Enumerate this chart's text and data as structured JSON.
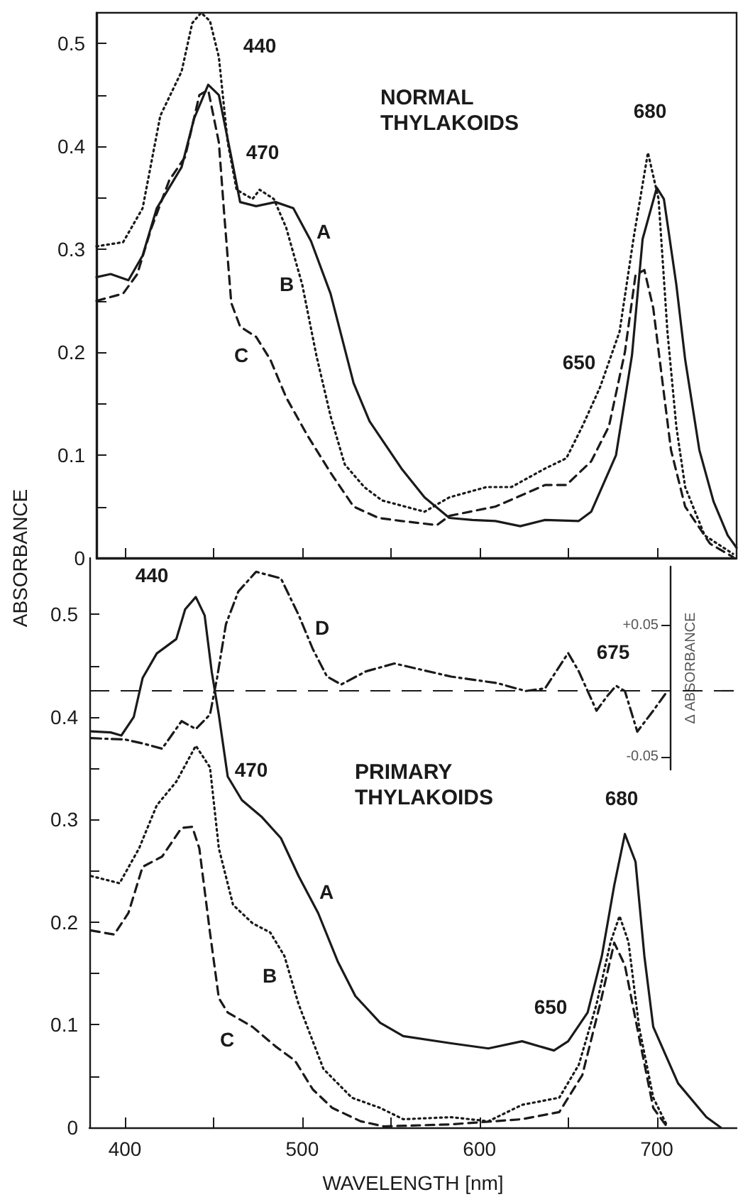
{
  "chart_data": [
    {
      "type": "line",
      "title": "NORMAL\nTHYLAKOIDS",
      "xlim": [
        384,
        745
      ],
      "xticks": [
        400,
        450,
        500,
        550,
        600,
        650,
        700
      ],
      "ylim": [
        0,
        0.53
      ],
      "yticks": [
        0,
        {
          "value": 0.05,
          "label": null
        },
        0.1,
        {
          "value": 0.15,
          "label": null
        },
        0.2,
        {
          "value": 0.25,
          "label": null
        },
        0.3,
        {
          "value": 0.35,
          "label": null
        },
        0.4,
        {
          "value": 0.45,
          "label": null
        },
        0.5
      ],
      "tick_labels": "y",
      "grid": false,
      "marker": "none",
      "series": [
        {
          "color": "#1a1a1a",
          "line_style": "solid",
          "x": [
            384,
            392,
            402,
            410,
            418,
            425,
            432,
            439,
            447,
            453,
            460,
            465,
            474,
            485,
            495,
            505,
            516,
            529,
            538,
            556,
            569,
            583,
            596,
            609,
            623,
            637,
            656,
            663,
            677,
            686,
            692,
            700,
            704,
            711,
            716,
            724,
            732,
            740,
            745
          ],
          "values": [
            0.273,
            0.276,
            0.27,
            0.294,
            0.34,
            0.36,
            0.38,
            0.427,
            0.46,
            0.45,
            0.39,
            0.346,
            0.342,
            0.346,
            0.34,
            0.308,
            0.257,
            0.17,
            0.133,
            0.087,
            0.059,
            0.039,
            0.037,
            0.036,
            0.031,
            0.037,
            0.036,
            0.045,
            0.1,
            0.197,
            0.31,
            0.36,
            0.349,
            0.266,
            0.193,
            0.105,
            0.055,
            0.022,
            0.01
          ]
        },
        {
          "color": "#1a1a1a",
          "line_style": "dotted",
          "x": [
            384,
            399,
            410,
            420,
            432,
            438,
            443,
            448,
            453,
            458,
            463,
            472,
            476,
            484,
            491,
            500,
            508,
            516,
            524,
            535,
            545,
            569,
            583,
            604,
            618,
            637,
            649,
            658,
            668,
            679,
            687,
            695,
            701,
            706,
            711,
            716,
            727,
            743
          ],
          "values": [
            0.303,
            0.307,
            0.34,
            0.43,
            0.473,
            0.52,
            0.53,
            0.522,
            0.487,
            0.404,
            0.358,
            0.349,
            0.358,
            0.349,
            0.321,
            0.266,
            0.197,
            0.138,
            0.091,
            0.069,
            0.056,
            0.045,
            0.059,
            0.069,
            0.069,
            0.087,
            0.097,
            0.128,
            0.166,
            0.22,
            0.312,
            0.394,
            0.349,
            0.22,
            0.128,
            0.069,
            0.022,
            0.004
          ]
        },
        {
          "color": "#1a1a1a",
          "line_style": "dashed",
          "x": [
            384,
            399,
            407,
            415,
            425,
            434,
            442,
            447,
            453,
            456,
            460,
            465,
            474,
            482,
            491,
            503,
            516,
            529,
            543,
            556,
            576,
            583,
            609,
            637,
            649,
            663,
            673,
            682,
            688,
            693,
            698,
            703,
            708,
            716,
            730,
            743
          ],
          "values": [
            0.25,
            0.257,
            0.276,
            0.321,
            0.367,
            0.39,
            0.45,
            0.455,
            0.404,
            0.335,
            0.248,
            0.225,
            0.215,
            0.193,
            0.156,
            0.119,
            0.083,
            0.05,
            0.039,
            0.036,
            0.032,
            0.041,
            0.05,
            0.071,
            0.071,
            0.094,
            0.128,
            0.2,
            0.275,
            0.28,
            0.243,
            0.174,
            0.105,
            0.05,
            0.014,
            0.001
          ]
        }
      ],
      "annotations": [
        "440",
        "470",
        "680",
        "650",
        "A",
        "B",
        "C"
      ]
    },
    {
      "type": "line",
      "title": "PRIMARY\nTHYLAKOIDS",
      "xlabel": "WAVELENGTH [nm]",
      "ylabel": "ABSORBANCE",
      "y2label": "Δ ABSORBANCE",
      "xlim": [
        380,
        745
      ],
      "xticks": [
        400,
        {
          "value": 450,
          "label": null
        },
        500,
        {
          "value": 550,
          "label": null
        },
        600,
        {
          "value": 650,
          "label": null
        },
        700
      ],
      "ylim": [
        0,
        0.555
      ],
      "yticks": [
        0,
        {
          "value": 0.05,
          "label": null
        },
        0.1,
        {
          "value": 0.15,
          "label": null
        },
        0.2,
        {
          "value": 0.25,
          "label": null
        },
        0.3,
        {
          "value": 0.35,
          "label": null
        },
        0.4,
        {
          "value": 0.45,
          "label": null
        },
        0.5
      ],
      "y2lim": [
        -0.06,
        0.095
      ],
      "y2ticks": [
        {
          "value": 0.05,
          "label": "+0.05"
        },
        -0.05
      ],
      "grid": false,
      "marker": "none",
      "series": [
        {
          "color": "#1a1a1a",
          "line_style": "solid",
          "x": [
            381,
            392,
            398,
            405,
            410,
            418,
            429,
            434,
            440,
            445,
            449,
            453,
            458,
            466,
            477,
            488,
            498,
            509,
            520,
            530,
            544,
            557,
            584,
            605,
            624,
            642,
            650,
            661,
            669,
            676,
            682,
            688,
            693,
            698,
            712,
            728,
            736
          ],
          "values": [
            0.386,
            0.385,
            0.382,
            0.4,
            0.438,
            0.462,
            0.476,
            0.505,
            0.517,
            0.499,
            0.444,
            0.402,
            0.342,
            0.319,
            0.303,
            0.282,
            0.245,
            0.209,
            0.162,
            0.128,
            0.102,
            0.089,
            0.082,
            0.077,
            0.084,
            0.075,
            0.084,
            0.112,
            0.167,
            0.236,
            0.286,
            0.259,
            0.167,
            0.098,
            0.043,
            0.01,
            0
          ]
        },
        {
          "color": "#1a1a1a",
          "line_style": "dotted",
          "x": [
            381,
            397,
            408,
            418,
            429,
            440,
            448,
            453,
            461,
            472,
            482,
            490,
            498,
            512,
            528,
            544,
            557,
            584,
            605,
            624,
            645,
            656,
            666,
            674,
            679,
            684,
            690,
            698,
            706
          ],
          "values": [
            0.245,
            0.238,
            0.272,
            0.314,
            0.337,
            0.372,
            0.351,
            0.272,
            0.217,
            0.199,
            0.19,
            0.167,
            0.12,
            0.057,
            0.029,
            0.019,
            0.008,
            0.01,
            0.006,
            0.022,
            0.029,
            0.061,
            0.12,
            0.181,
            0.206,
            0.181,
            0.098,
            0.029,
            0.001
          ]
        },
        {
          "color": "#1a1a1a",
          "line_style": "dashed",
          "x": [
            381,
            394,
            402,
            410,
            421,
            432,
            438,
            442,
            448,
            453,
            458,
            472,
            485,
            496,
            506,
            517,
            533,
            546,
            584,
            624,
            645,
            658,
            668,
            676,
            682,
            690,
            698,
            706
          ],
          "values": [
            0.192,
            0.188,
            0.209,
            0.254,
            0.264,
            0.292,
            0.293,
            0.272,
            0.19,
            0.126,
            0.112,
            0.098,
            0.079,
            0.065,
            0.037,
            0.019,
            0.006,
            0.001,
            0.003,
            0.008,
            0.015,
            0.051,
            0.12,
            0.18,
            0.158,
            0.088,
            0.019,
            0
          ]
        },
        {
          "color": "#1a1a1a",
          "line_style": "dashdot",
          "axis": "y2",
          "x": [
            381,
            400,
            410,
            421,
            432,
            440,
            448,
            452,
            457,
            464,
            474,
            488,
            498,
            506,
            514,
            522,
            536,
            552,
            584,
            610,
            626,
            637,
            650,
            656,
            661,
            666,
            672,
            677,
            682,
            689,
            698,
            706
          ],
          "values": [
            -0.036,
            -0.037,
            -0.04,
            -0.044,
            -0.023,
            -0.029,
            -0.018,
            0.01,
            0.051,
            0.076,
            0.091,
            0.086,
            0.058,
            0.032,
            0.011,
            0.005,
            0.015,
            0.021,
            0.011,
            0.006,
            0,
            0.002,
            0.029,
            0.015,
            0,
            -0.015,
            -0.004,
            0.004,
            0,
            -0.031,
            -0.015,
            0
          ]
        }
      ],
      "ref_lines": [
        {
          "axis": "y2",
          "value": 0,
          "line_style": "dashed",
          "color": "#1a1a1a"
        }
      ],
      "annotations": [
        "440",
        "470",
        "675",
        "680",
        "650",
        "A",
        "B",
        "C",
        "D"
      ]
    }
  ]
}
